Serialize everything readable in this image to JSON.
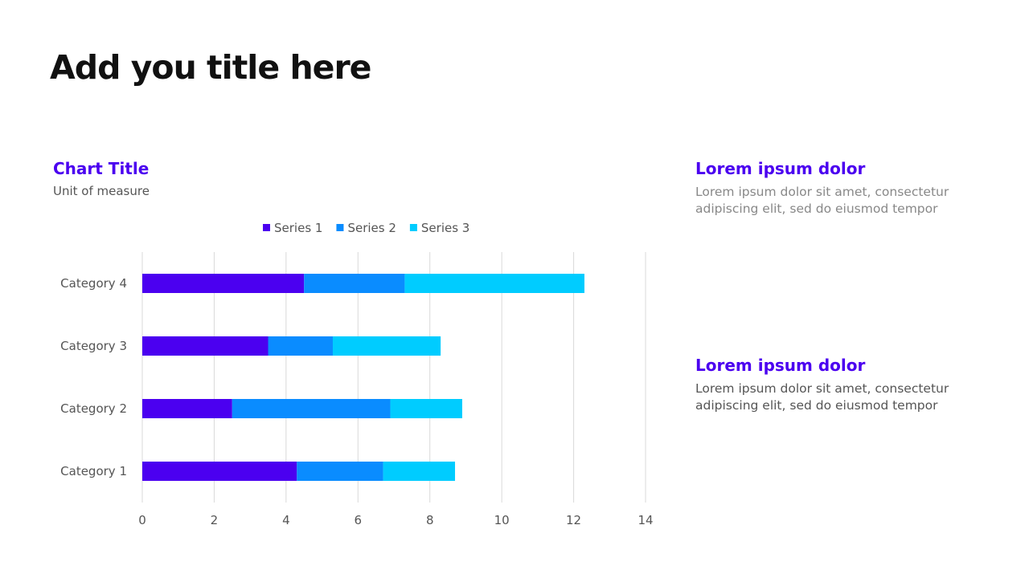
{
  "slide": {
    "title": "Add you title here"
  },
  "chart_data": {
    "type": "bar",
    "orientation": "horizontal",
    "stacked": true,
    "title": "Chart Title",
    "subtitle": "Unit of measure",
    "categories": [
      "Category 1",
      "Category 2",
      "Category 3",
      "Category 4"
    ],
    "series": [
      {
        "name": "Series 1",
        "values": [
          4.3,
          2.5,
          3.5,
          4.5
        ],
        "color": "#4B00F0"
      },
      {
        "name": "Series 2",
        "values": [
          2.4,
          4.4,
          1.8,
          2.8
        ],
        "color": "#0A8CFF"
      },
      {
        "name": "Series 3",
        "values": [
          2,
          2,
          3,
          5
        ],
        "color": "#00CCFF"
      }
    ],
    "xlim": [
      0,
      14
    ],
    "xticks": [
      0,
      2,
      4,
      6,
      8,
      10,
      12,
      14
    ],
    "grid": true,
    "legend": "top"
  },
  "side": [
    {
      "heading": "Lorem ipsum dolor",
      "body": "Lorem ipsum dolor sit amet, consectetur adipiscing elit, sed do eiusmod tempor",
      "color": "#888888"
    },
    {
      "heading": "Lorem ipsum dolor",
      "body": "Lorem ipsum dolor sit amet, consectetur adipiscing elit, sed do eiusmod tempor",
      "color": "#555555"
    }
  ]
}
